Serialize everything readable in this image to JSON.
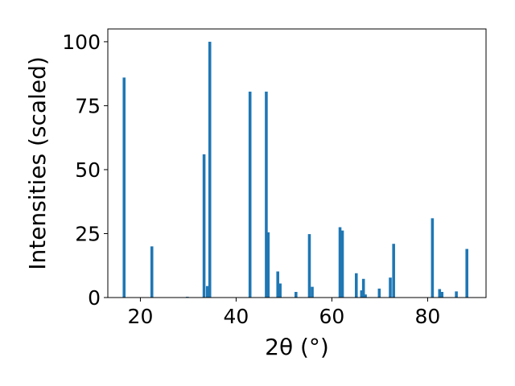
{
  "chart_data": {
    "type": "bar",
    "xlabel": "2θ (°)",
    "ylabel": "Intensities (scaled)",
    "xlim": [
      13.2,
      92.2
    ],
    "ylim": [
      0,
      105
    ],
    "bar_width": 0.6,
    "color": "#1f77b4",
    "x_ticks": [
      20,
      40,
      60,
      80
    ],
    "y_ticks": [
      0,
      25,
      50,
      75,
      100
    ],
    "points": [
      {
        "x": 16.6,
        "y": 86
      },
      {
        "x": 22.4,
        "y": 20
      },
      {
        "x": 29.8,
        "y": 0.3
      },
      {
        "x": 33.3,
        "y": 56
      },
      {
        "x": 34.0,
        "y": 4.5
      },
      {
        "x": 34.5,
        "y": 100
      },
      {
        "x": 42.9,
        "y": 80.5
      },
      {
        "x": 46.3,
        "y": 80.5
      },
      {
        "x": 46.7,
        "y": 25.5
      },
      {
        "x": 48.7,
        "y": 10.2
      },
      {
        "x": 49.2,
        "y": 5.5
      },
      {
        "x": 52.5,
        "y": 2.2
      },
      {
        "x": 55.3,
        "y": 24.8
      },
      {
        "x": 55.9,
        "y": 4.2
      },
      {
        "x": 61.7,
        "y": 27.5
      },
      {
        "x": 62.2,
        "y": 26.2
      },
      {
        "x": 65.1,
        "y": 9.5
      },
      {
        "x": 66.2,
        "y": 2.8
      },
      {
        "x": 66.6,
        "y": 7.3
      },
      {
        "x": 67.0,
        "y": 1.2
      },
      {
        "x": 69.9,
        "y": 3.5
      },
      {
        "x": 72.2,
        "y": 7.8
      },
      {
        "x": 72.9,
        "y": 21.0
      },
      {
        "x": 81.0,
        "y": 31.0
      },
      {
        "x": 82.5,
        "y": 3.3
      },
      {
        "x": 83.0,
        "y": 2.2
      },
      {
        "x": 86.0,
        "y": 2.4
      },
      {
        "x": 88.2,
        "y": 19.0
      }
    ]
  }
}
